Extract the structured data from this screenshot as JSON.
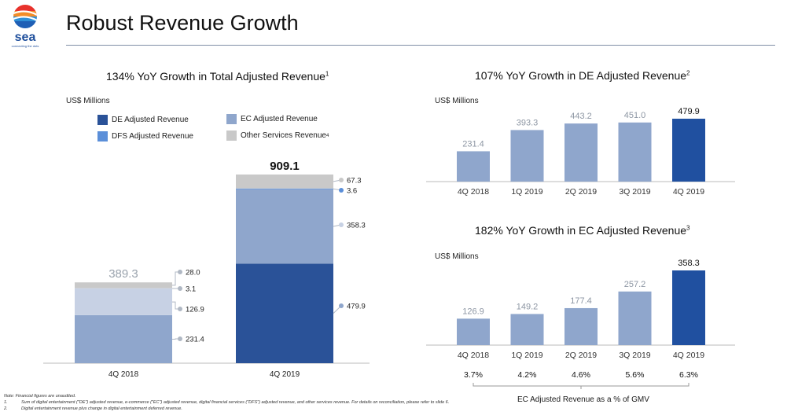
{
  "header": {
    "logo_text": "sea",
    "logo_tagline": "connecting the dots",
    "title": "Robust Revenue Growth"
  },
  "colors": {
    "de": "#2a5298",
    "ec": "#8fa6cc",
    "ec_light": "#c7d1e4",
    "dfs": "#5b8fd9",
    "other": "#c9c9c9",
    "highlight": "#2050a0"
  },
  "chart_data": [
    {
      "type": "bar",
      "stacked": true,
      "title": "134% YoY Growth in Total Adjusted Revenue",
      "title_footnote": "1",
      "unit": "US$ Millions",
      "categories": [
        "4Q 2018",
        "4Q 2019"
      ],
      "totals": [
        "389.3",
        "909.1"
      ],
      "legend": [
        {
          "label": "DE Adjusted Revenue",
          "color": "#2a5298"
        },
        {
          "label": "EC Adjusted Revenue",
          "color": "#8fa6cc"
        },
        {
          "label": "DFS Adjusted Revenue",
          "color": "#5b8fd9"
        },
        {
          "label": "Other Services Revenue",
          "footnote": "4",
          "color": "#c9c9c9"
        }
      ],
      "series": [
        {
          "name": "DE Adjusted Revenue",
          "values": [
            231.4,
            479.9
          ],
          "labels": [
            "231.4",
            "479.9"
          ]
        },
        {
          "name": "EC Adjusted Revenue",
          "values": [
            126.9,
            358.3
          ],
          "labels": [
            "126.9",
            "358.3"
          ]
        },
        {
          "name": "DFS Adjusted Revenue",
          "values": [
            3.1,
            3.6
          ],
          "labels": [
            "3.1",
            "3.6"
          ]
        },
        {
          "name": "Other Services Revenue",
          "values": [
            28.0,
            67.3
          ],
          "labels": [
            "28.0",
            "67.3"
          ]
        }
      ],
      "ylim": [
        0,
        909.1
      ]
    },
    {
      "type": "bar",
      "title": "107% YoY Growth in DE Adjusted Revenue",
      "title_footnote": "2",
      "unit": "US$ Millions",
      "categories": [
        "4Q 2018",
        "1Q 2019",
        "2Q 2019",
        "3Q 2019",
        "4Q 2019"
      ],
      "values": [
        231.4,
        393.3,
        443.2,
        451.0,
        479.9
      ],
      "value_labels": [
        "231.4",
        "393.3",
        "443.2",
        "451.0",
        "479.9"
      ],
      "highlight_index": 4,
      "ylim": [
        0,
        479.9
      ]
    },
    {
      "type": "bar",
      "title": "182% YoY Growth in EC Adjusted Revenue",
      "title_footnote": "3",
      "unit": "US$ Millions",
      "categories": [
        "4Q 2018",
        "1Q 2019",
        "2Q 2019",
        "3Q 2019",
        "4Q 2019"
      ],
      "values": [
        126.9,
        149.2,
        177.4,
        257.2,
        358.3
      ],
      "value_labels": [
        "126.9",
        "149.2",
        "177.4",
        "257.2",
        "358.3"
      ],
      "gmv_pct": [
        "3.7%",
        "4.2%",
        "4.6%",
        "5.6%",
        "6.3%"
      ],
      "gmv_caption": "EC Adjusted Revenue as a % of GMV",
      "highlight_index": 4,
      "ylim": [
        0,
        358.3
      ]
    }
  ],
  "footnotes": {
    "note": "Note: Financial figures are unaudited.",
    "items": [
      {
        "num": "1.",
        "text": "Sum of digital entertainment (\"DE\") adjusted revenue, e-commerce (\"EC\") adjusted revenue, digital financial services (\"DFS\") adjusted revenue, and other services revenue. For details on reconciliation, please refer to slide 6."
      },
      {
        "num": "2.",
        "text": "Digital entertainment revenue plus change in digital entertainment deferred revenue."
      }
    ]
  }
}
